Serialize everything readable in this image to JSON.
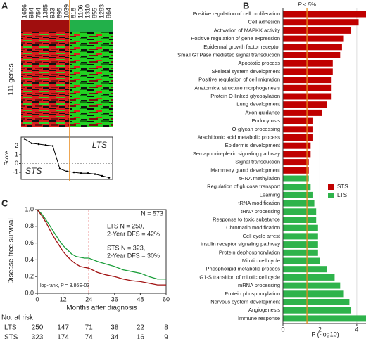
{
  "chart_data": [
    {
      "type": "line",
      "panel_label": "A",
      "heatmap_label": "111 genes",
      "categories": [
        "1656",
        "984",
        "754",
        "1385",
        "933",
        "895",
        "1039",
        "818",
        "1106",
        "1310",
        "855",
        "1283",
        "864"
      ],
      "values": [
        2.8,
        2.3,
        2.2,
        2.1,
        2.0,
        -0.6,
        -0.9,
        -1.0,
        -1.1,
        -1.1,
        -1.2,
        -1.4,
        -1.6
      ],
      "color": "#000000",
      "ylabel": "Score",
      "ylim": [
        -1.8,
        3.0
      ],
      "yticks": [
        2,
        1,
        0,
        -1
      ],
      "annotations": [
        "LTS",
        "STS"
      ],
      "annotation_colors": [
        "#1a9e3a",
        "#a01010"
      ]
    },
    {
      "type": "bar",
      "panel_label": "B",
      "orientation": "horizontal",
      "xlabel": "P (-log10)",
      "xlim": [
        0,
        4.5
      ],
      "xticks": [
        0,
        2,
        4
      ],
      "grid": true,
      "threshold": 1.3,
      "threshold_label": "P < 5%",
      "threshold_color": "#e88a1a",
      "series": [
        {
          "name": "STS",
          "color": "#c00000",
          "categories": [
            "Positive regulation of cell proliferation",
            "Cell adhesion",
            "Activation of MAPKK activity",
            "Positive regulation of gene expression",
            "Epidermal growth factor receptor",
            "Small GTPase mediated signal transduction",
            "Apoptotic process",
            "Skeletal system development",
            "Positive regulation of cell migration",
            "Anatomical structure morphogenesis",
            "Protein O-linked glycosylation",
            "Lung development",
            "Axon guidance",
            "Endocytosis",
            "O-glycan processing",
            "Arachidonic acid metabolic process",
            "Epidermis development",
            "Semaphorin-plexin signaling pathway",
            "Signal transduction",
            "Mammary gland development"
          ],
          "values": [
            4.5,
            4.1,
            3.7,
            3.3,
            3.2,
            3.1,
            2.7,
            2.7,
            2.6,
            2.6,
            2.6,
            2.4,
            2.1,
            1.6,
            1.6,
            1.6,
            1.5,
            1.5,
            1.4,
            1.4
          ]
        },
        {
          "name": "LTS",
          "color": "#2eb34b",
          "categories": [
            "tRNA methylation",
            "Regulation of glucose transport",
            "Learning",
            "tRNA modification",
            "tRNA processing",
            "Response to toxic substance",
            "Chromatin modification",
            "Cell cycle arrest",
            "Insulin receptor signaling pathway",
            "Protein dephosphorylation",
            "Mitotic cell cycle",
            "Phospholipid metabolic process",
            "G1-S transition of mitotic cell cycle",
            "mRNA processing",
            "Protein phosphorylation",
            "Nervous system development",
            "Angiogenesis",
            "Immune response"
          ],
          "values": [
            1.4,
            1.5,
            1.6,
            1.7,
            1.8,
            1.8,
            1.9,
            1.9,
            1.9,
            1.9,
            2.0,
            2.4,
            2.8,
            3.1,
            3.3,
            3.6,
            3.7,
            4.5
          ]
        }
      ]
    },
    {
      "type": "line",
      "panel_label": "C",
      "xlabel": "Months after diagnosis",
      "ylabel": "Disease-free survival",
      "xlim": [
        0,
        60
      ],
      "xticks": [
        0,
        12,
        24,
        36,
        48,
        60
      ],
      "ylim": [
        0,
        1
      ],
      "yticks": [
        {
          "value": 0,
          "label": "0.0"
        },
        0.2,
        0.4,
        0.6,
        0.8,
        {
          "value": 1,
          "label": "1.0"
        }
      ],
      "marker_line": 24,
      "series": [
        {
          "name": "LTS",
          "color": "#1a9e3a",
          "x": [
            0,
            2,
            4,
            6,
            8,
            10,
            12,
            14,
            16,
            18,
            20,
            22,
            24,
            28,
            32,
            36,
            40,
            44,
            48,
            52,
            56,
            60
          ],
          "values": [
            1,
            0.95,
            0.88,
            0.8,
            0.72,
            0.64,
            0.57,
            0.52,
            0.47,
            0.44,
            0.43,
            0.42,
            0.42,
            0.38,
            0.35,
            0.32,
            0.28,
            0.26,
            0.24,
            0.2,
            0.17,
            0.17
          ]
        },
        {
          "name": "STS",
          "color": "#a01010",
          "x": [
            0,
            2,
            4,
            6,
            8,
            10,
            12,
            14,
            16,
            18,
            20,
            22,
            24,
            28,
            32,
            36,
            40,
            44,
            48,
            52,
            56,
            60
          ],
          "values": [
            1,
            0.93,
            0.85,
            0.75,
            0.66,
            0.58,
            0.5,
            0.44,
            0.39,
            0.35,
            0.32,
            0.31,
            0.3,
            0.25,
            0.22,
            0.2,
            0.17,
            0.15,
            0.14,
            0.12,
            0.1,
            0.1
          ]
        }
      ],
      "annotations": [
        "N = 573",
        "LTS N = 250,",
        "2-Year DFS = 42%",
        "STS N = 323,",
        "2-Year DFS = 30%",
        "log-rank, P = 3.86E-03"
      ],
      "risk_table": {
        "title": "No. at risk",
        "x": [
          0,
          12,
          24,
          36,
          48,
          60
        ],
        "rows": [
          {
            "name": "LTS",
            "color": "#1a9e3a",
            "values": [
              250,
              147,
              71,
              38,
              22,
              8
            ]
          },
          {
            "name": "STS",
            "color": "#a01010",
            "values": [
              323,
              174,
              74,
              34,
              16,
              9
            ]
          }
        ]
      }
    }
  ]
}
